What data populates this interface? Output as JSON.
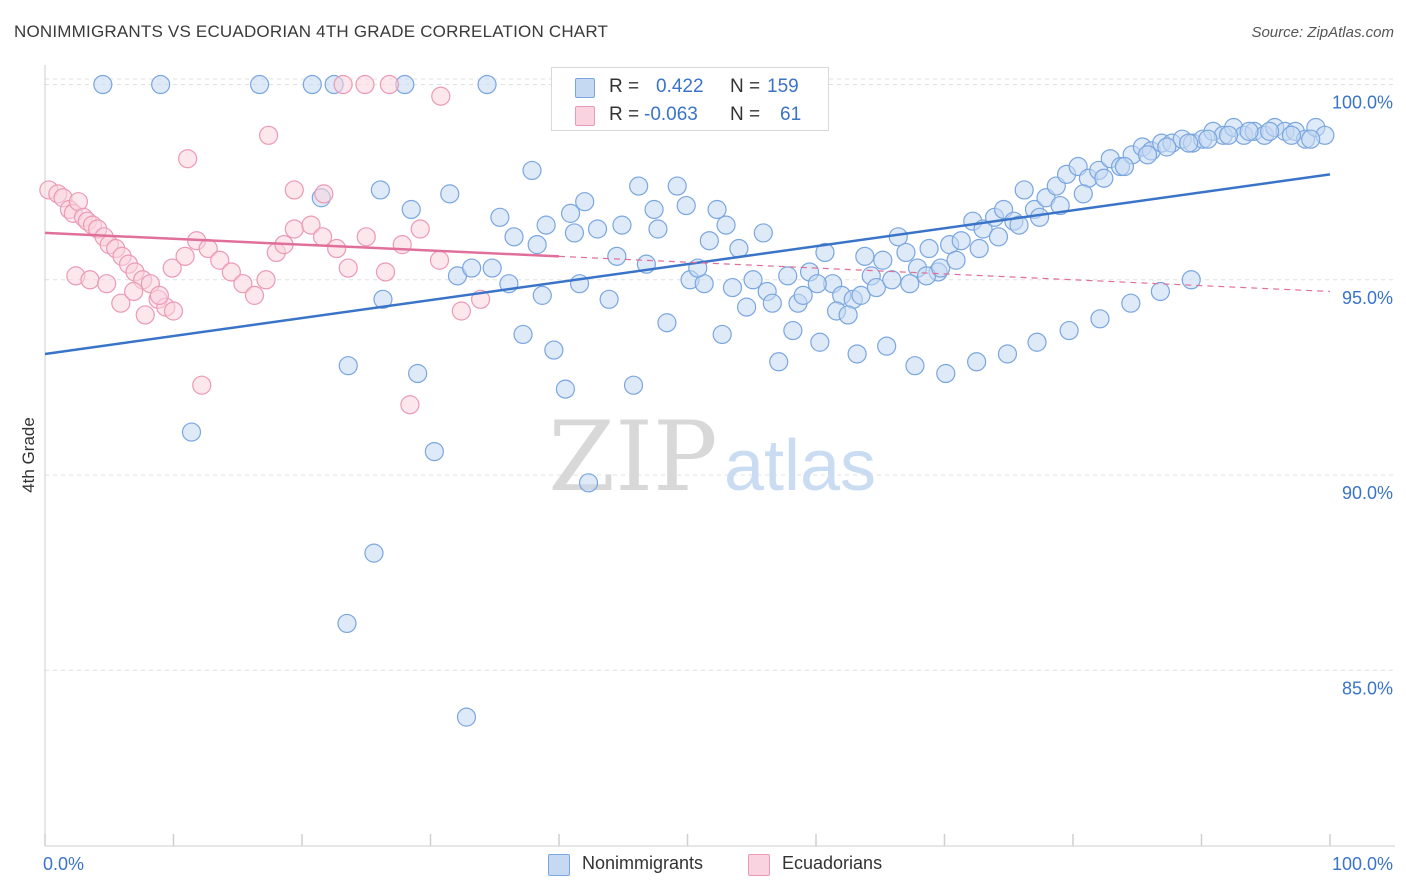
{
  "title": "NONIMMIGRANTS VS ECUADORIAN 4TH GRADE CORRELATION CHART",
  "source": "Source: ZipAtlas.com",
  "watermark": {
    "zip": "ZIP",
    "atlas": "atlas"
  },
  "stats": {
    "r_label": "R =",
    "n_label": "N =",
    "rows": [
      {
        "r": "0.422",
        "n": "159",
        "color": "#7aa6e0",
        "fill": "#c5d9f3"
      },
      {
        "r": "-0.063",
        "n": "61",
        "color": "#ec99b6",
        "fill": "#f9d3df"
      }
    ]
  },
  "legend": [
    {
      "label": "Nonimmigrants",
      "color": "#7aa6e0",
      "fill": "#c5d9f3"
    },
    {
      "label": "Ecuadorians",
      "color": "#ec99b6",
      "fill": "#f9d3df"
    }
  ],
  "chart_data": {
    "type": "scatter",
    "ylabel": "4th Grade",
    "xlim": [
      0,
      100
    ],
    "ylim": [
      80.5,
      100.5
    ],
    "x_tick_labels": [
      {
        "value": 0,
        "label": "0.0%"
      },
      {
        "value": 100,
        "label": "100.0%"
      }
    ],
    "y_tick_labels": [
      {
        "value": 100,
        "label": "100.0%"
      },
      {
        "value": 95,
        "label": "95.0%"
      },
      {
        "value": 90,
        "label": "90.0%"
      },
      {
        "value": 85,
        "label": "85.0%"
      }
    ],
    "grid": "dashed horizontal",
    "series": [
      {
        "name": "Nonimmigrants",
        "color": "#3a74c8",
        "marker_color": "#7aa6e0",
        "trend": {
          "x": [
            0,
            100
          ],
          "y": [
            93.1,
            97.7
          ],
          "dashed_from": null
        },
        "points": [
          [
            4.5,
            100
          ],
          [
            9.0,
            100
          ],
          [
            16.7,
            100
          ],
          [
            20.8,
            100
          ],
          [
            22.5,
            100
          ],
          [
            28.0,
            100
          ],
          [
            34.4,
            100
          ],
          [
            11.4,
            91.1
          ],
          [
            23.6,
            92.8
          ],
          [
            21.5,
            97.1
          ],
          [
            26.3,
            94.5
          ],
          [
            29.0,
            92.6
          ],
          [
            30.3,
            90.6
          ],
          [
            32.1,
            95.1
          ],
          [
            33.2,
            95.3
          ],
          [
            23.5,
            86.2
          ],
          [
            25.6,
            88.0
          ],
          [
            32.8,
            83.8
          ],
          [
            36.1,
            94.9
          ],
          [
            37.2,
            93.6
          ],
          [
            38.7,
            94.6
          ],
          [
            39.6,
            93.2
          ],
          [
            40.5,
            92.2
          ],
          [
            41.6,
            94.9
          ],
          [
            42.3,
            89.8
          ],
          [
            43.9,
            94.5
          ],
          [
            45.8,
            92.3
          ],
          [
            46.8,
            95.4
          ],
          [
            48.4,
            93.9
          ],
          [
            49.2,
            97.4
          ],
          [
            50.2,
            95.0
          ],
          [
            51.3,
            94.9
          ],
          [
            52.7,
            93.6
          ],
          [
            53.5,
            94.8
          ],
          [
            54.6,
            94.3
          ],
          [
            55.1,
            95.0
          ],
          [
            56.2,
            94.7
          ],
          [
            57.1,
            92.9
          ],
          [
            58.6,
            94.4
          ],
          [
            59.5,
            95.2
          ],
          [
            60.7,
            95.7
          ],
          [
            61.3,
            94.9
          ],
          [
            62.0,
            94.6
          ],
          [
            62.9,
            94.5
          ],
          [
            63.8,
            95.6
          ],
          [
            64.3,
            95.1
          ],
          [
            65.2,
            95.5
          ],
          [
            66.4,
            96.1
          ],
          [
            67.0,
            95.7
          ],
          [
            67.9,
            95.3
          ],
          [
            68.8,
            95.8
          ],
          [
            69.5,
            95.2
          ],
          [
            70.4,
            95.9
          ],
          [
            71.3,
            96.0
          ],
          [
            72.2,
            96.5
          ],
          [
            73.0,
            96.3
          ],
          [
            73.9,
            96.6
          ],
          [
            74.6,
            96.8
          ],
          [
            75.4,
            96.5
          ],
          [
            76.2,
            97.3
          ],
          [
            77.0,
            96.8
          ],
          [
            77.9,
            97.1
          ],
          [
            78.7,
            97.4
          ],
          [
            79.5,
            97.7
          ],
          [
            80.4,
            97.9
          ],
          [
            81.2,
            97.6
          ],
          [
            82.0,
            97.8
          ],
          [
            82.9,
            98.1
          ],
          [
            83.7,
            97.9
          ],
          [
            84.6,
            98.2
          ],
          [
            85.4,
            98.4
          ],
          [
            86.1,
            98.3
          ],
          [
            86.9,
            98.5
          ],
          [
            87.7,
            98.5
          ],
          [
            88.5,
            98.6
          ],
          [
            89.3,
            98.5
          ],
          [
            90.1,
            98.6
          ],
          [
            90.9,
            98.8
          ],
          [
            91.7,
            98.7
          ],
          [
            92.5,
            98.9
          ],
          [
            93.3,
            98.7
          ],
          [
            94.1,
            98.8
          ],
          [
            94.9,
            98.7
          ],
          [
            95.7,
            98.9
          ],
          [
            96.5,
            98.8
          ],
          [
            97.3,
            98.8
          ],
          [
            98.1,
            98.6
          ],
          [
            98.9,
            98.9
          ],
          [
            99.6,
            98.7
          ],
          [
            28.5,
            96.8
          ],
          [
            31.5,
            97.2
          ],
          [
            35.4,
            96.6
          ],
          [
            37.9,
            97.8
          ],
          [
            39.0,
            96.4
          ],
          [
            40.9,
            96.7
          ],
          [
            42.0,
            97.0
          ],
          [
            43.0,
            96.3
          ],
          [
            44.9,
            96.4
          ],
          [
            46.2,
            97.4
          ],
          [
            47.7,
            96.3
          ],
          [
            49.9,
            96.9
          ],
          [
            51.7,
            96.0
          ],
          [
            53.0,
            96.4
          ],
          [
            54.0,
            95.8
          ],
          [
            55.9,
            96.2
          ],
          [
            57.8,
            95.1
          ],
          [
            59.0,
            94.6
          ],
          [
            60.1,
            94.9
          ],
          [
            61.6,
            94.2
          ],
          [
            62.5,
            94.1
          ],
          [
            63.5,
            94.6
          ],
          [
            64.7,
            94.8
          ],
          [
            65.9,
            95.0
          ],
          [
            67.3,
            94.9
          ],
          [
            68.6,
            95.1
          ],
          [
            69.7,
            95.3
          ],
          [
            70.9,
            95.5
          ],
          [
            72.7,
            95.8
          ],
          [
            74.2,
            96.1
          ],
          [
            75.8,
            96.4
          ],
          [
            77.4,
            96.6
          ],
          [
            79.0,
            96.9
          ],
          [
            80.8,
            97.2
          ],
          [
            82.4,
            97.6
          ],
          [
            84.0,
            97.9
          ],
          [
            85.8,
            98.2
          ],
          [
            87.3,
            98.4
          ],
          [
            89.0,
            98.5
          ],
          [
            90.5,
            98.6
          ],
          [
            92.1,
            98.7
          ],
          [
            93.7,
            98.8
          ],
          [
            95.3,
            98.8
          ],
          [
            97.0,
            98.7
          ],
          [
            98.5,
            98.6
          ],
          [
            26.1,
            97.3
          ],
          [
            34.8,
            95.3
          ],
          [
            36.5,
            96.1
          ],
          [
            38.3,
            95.9
          ],
          [
            41.2,
            96.2
          ],
          [
            44.5,
            95.6
          ],
          [
            47.4,
            96.8
          ],
          [
            50.8,
            95.3
          ],
          [
            52.3,
            96.8
          ],
          [
            56.6,
            94.4
          ],
          [
            58.2,
            93.7
          ],
          [
            60.3,
            93.4
          ],
          [
            63.2,
            93.1
          ],
          [
            65.5,
            93.3
          ],
          [
            67.7,
            92.8
          ],
          [
            70.1,
            92.6
          ],
          [
            72.5,
            92.9
          ],
          [
            74.9,
            93.1
          ],
          [
            77.2,
            93.4
          ],
          [
            79.7,
            93.7
          ],
          [
            82.1,
            94.0
          ],
          [
            84.5,
            94.4
          ],
          [
            86.8,
            94.7
          ],
          [
            89.2,
            95.0
          ]
        ]
      },
      {
        "name": "Ecuadorians",
        "color": "#e0709a",
        "marker_color": "#ec99b6",
        "trend": {
          "x": [
            0,
            100
          ],
          "y": [
            96.2,
            94.7
          ],
          "dashed_from": 40
        },
        "points": [
          [
            0.3,
            97.3
          ],
          [
            1.0,
            97.2
          ],
          [
            1.4,
            97.1
          ],
          [
            1.9,
            96.8
          ],
          [
            2.2,
            96.7
          ],
          [
            2.6,
            97.0
          ],
          [
            3.0,
            96.6
          ],
          [
            3.3,
            96.5
          ],
          [
            3.7,
            96.4
          ],
          [
            4.1,
            96.3
          ],
          [
            4.6,
            96.1
          ],
          [
            5.0,
            95.9
          ],
          [
            5.5,
            95.8
          ],
          [
            6.0,
            95.6
          ],
          [
            6.5,
            95.4
          ],
          [
            7.0,
            95.2
          ],
          [
            7.6,
            95.0
          ],
          [
            8.2,
            94.9
          ],
          [
            8.8,
            94.5
          ],
          [
            9.4,
            94.3
          ],
          [
            10.0,
            94.2
          ],
          [
            2.4,
            95.1
          ],
          [
            3.5,
            95.0
          ],
          [
            4.8,
            94.9
          ],
          [
            5.9,
            94.4
          ],
          [
            6.9,
            94.7
          ],
          [
            7.8,
            94.1
          ],
          [
            8.9,
            94.6
          ],
          [
            9.9,
            95.3
          ],
          [
            10.9,
            95.6
          ],
          [
            11.8,
            96.0
          ],
          [
            12.7,
            95.8
          ],
          [
            13.6,
            95.5
          ],
          [
            14.5,
            95.2
          ],
          [
            15.4,
            94.9
          ],
          [
            16.3,
            94.6
          ],
          [
            17.2,
            95.0
          ],
          [
            18.0,
            95.7
          ],
          [
            18.6,
            95.9
          ],
          [
            19.4,
            96.3
          ],
          [
            20.7,
            96.4
          ],
          [
            21.6,
            96.1
          ],
          [
            22.7,
            95.8
          ],
          [
            23.6,
            95.3
          ],
          [
            25.0,
            96.1
          ],
          [
            26.5,
            95.2
          ],
          [
            27.8,
            95.9
          ],
          [
            29.2,
            96.3
          ],
          [
            30.7,
            95.5
          ],
          [
            32.4,
            94.2
          ],
          [
            33.9,
            94.5
          ],
          [
            11.1,
            98.1
          ],
          [
            17.4,
            98.7
          ],
          [
            19.4,
            97.3
          ],
          [
            21.7,
            97.2
          ],
          [
            23.2,
            100
          ],
          [
            24.9,
            100
          ],
          [
            26.8,
            100
          ],
          [
            30.8,
            99.7
          ],
          [
            12.2,
            92.3
          ],
          [
            28.4,
            91.8
          ]
        ]
      }
    ]
  }
}
